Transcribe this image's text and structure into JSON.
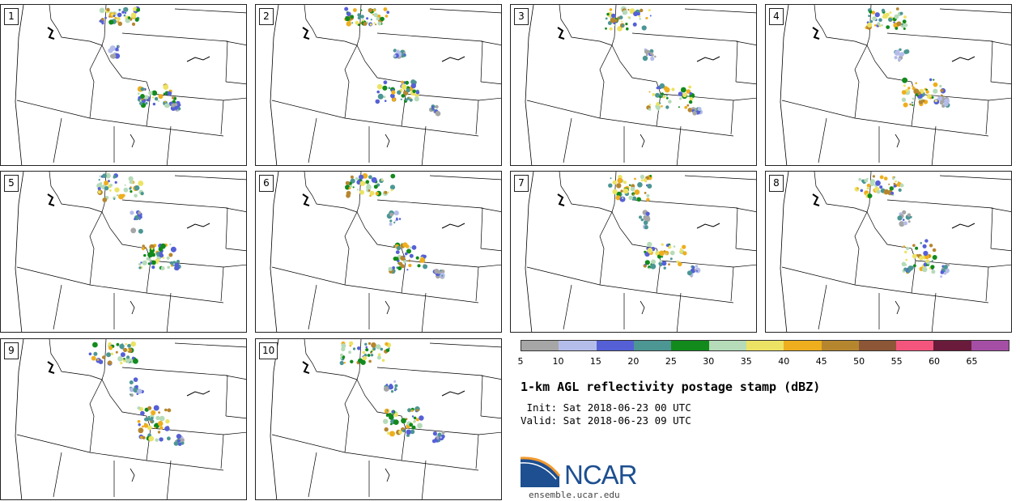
{
  "panels": [
    {
      "label": "1",
      "storms": [
        [
          120,
          5,
          50,
          20,
          "heavy"
        ],
        [
          170,
          100,
          45,
          25,
          "heavy"
        ],
        [
          135,
          50,
          15,
          15,
          "light"
        ],
        [
          210,
          120,
          12,
          10,
          "light"
        ]
      ]
    },
    {
      "label": "2",
      "storms": [
        [
          110,
          5,
          55,
          20,
          "heavy"
        ],
        [
          150,
          95,
          50,
          25,
          "heavy"
        ],
        [
          170,
          55,
          15,
          10,
          "light"
        ],
        [
          215,
          125,
          10,
          10,
          "light"
        ]
      ]
    },
    {
      "label": "3",
      "storms": [
        [
          115,
          5,
          60,
          25,
          "heavy"
        ],
        [
          170,
          100,
          55,
          30,
          "heavy"
        ],
        [
          165,
          55,
          15,
          12,
          "light"
        ],
        [
          225,
          125,
          10,
          10,
          "light"
        ]
      ]
    },
    {
      "label": "4",
      "storms": [
        [
          120,
          5,
          55,
          25,
          "heavy"
        ],
        [
          170,
          90,
          50,
          35,
          "heavy"
        ],
        [
          160,
          55,
          15,
          15,
          "light"
        ],
        [
          215,
          115,
          10,
          12,
          "light"
        ]
      ]
    },
    {
      "label": "5",
      "storms": [
        [
          120,
          5,
          55,
          30,
          "heavy"
        ],
        [
          170,
          90,
          45,
          30,
          "heavy"
        ],
        [
          160,
          50,
          15,
          25,
          "light"
        ],
        [
          210,
          110,
          10,
          10,
          "light"
        ]
      ]
    },
    {
      "label": "6",
      "storms": [
        [
          110,
          5,
          60,
          25,
          "heavy"
        ],
        [
          165,
          90,
          45,
          35,
          "heavy"
        ],
        [
          165,
          50,
          15,
          15,
          "light"
        ],
        [
          220,
          120,
          12,
          12,
          "light"
        ]
      ]
    },
    {
      "label": "7",
      "storms": [
        [
          120,
          5,
          55,
          30,
          "heavy"
        ],
        [
          165,
          90,
          50,
          30,
          "heavy"
        ],
        [
          160,
          50,
          15,
          20,
          "light"
        ],
        [
          220,
          115,
          12,
          15,
          "light"
        ]
      ]
    },
    {
      "label": "8",
      "storms": [
        [
          110,
          5,
          60,
          25,
          "heavy"
        ],
        [
          170,
          85,
          40,
          40,
          "heavy"
        ],
        [
          165,
          50,
          15,
          15,
          "light"
        ],
        [
          215,
          115,
          10,
          15,
          "light"
        ]
      ]
    },
    {
      "label": "9",
      "storms": [
        [
          110,
          5,
          60,
          25,
          "heavy"
        ],
        [
          170,
          85,
          40,
          40,
          "heavy"
        ],
        [
          160,
          50,
          15,
          20,
          "light"
        ],
        [
          215,
          120,
          10,
          10,
          "light"
        ]
      ]
    },
    {
      "label": "10",
      "storms": [
        [
          105,
          5,
          60,
          25,
          "heavy"
        ],
        [
          160,
          85,
          45,
          35,
          "heavy"
        ],
        [
          160,
          50,
          15,
          15,
          "light"
        ],
        [
          220,
          115,
          12,
          12,
          "light"
        ]
      ]
    }
  ],
  "colorbar": {
    "colors": [
      "#a6a6a6",
      "#b4bdea",
      "#5560d6",
      "#4c9694",
      "#128a1c",
      "#b6dbb9",
      "#ece364",
      "#eeae1e",
      "#b6862f",
      "#8c5637",
      "#f4557d",
      "#6a1a3a",
      "#a54ea5"
    ],
    "ticks": [
      "5",
      "10",
      "15",
      "20",
      "25",
      "30",
      "35",
      "40",
      "45",
      "50",
      "55",
      "60",
      "65"
    ]
  },
  "title": "1-km AGL reflectivity postage stamp (dBZ)",
  "init": " Init: Sat 2018-06-23 00 UTC",
  "valid": "Valid: Sat 2018-06-23 09 UTC",
  "logo": {
    "text": "NCAR",
    "site": "ensemble.ucar.edu",
    "brand_color": "#1d4f91",
    "accent_color": "#f29a2e"
  }
}
